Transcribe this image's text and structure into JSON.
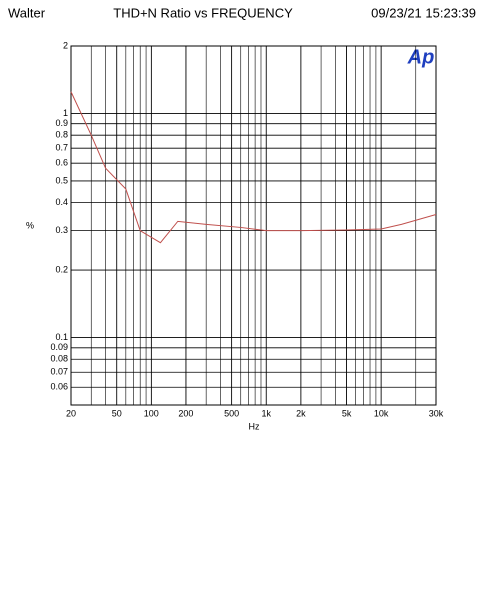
{
  "chart_data": {
    "type": "line",
    "header_left": "Walter",
    "title": "THD+N Ratio vs FREQUENCY",
    "timestamp": "09/23/21 15:23:39",
    "logo": "Ap",
    "xlabel": "Hz",
    "ylabel": "%",
    "x": [
      20,
      30,
      40,
      60,
      80,
      120,
      170,
      300,
      600,
      1000,
      2000,
      5000,
      10000,
      15000,
      30000
    ],
    "series": [
      {
        "name": "THD+N",
        "color": "#c0504d",
        "values": [
          1.25,
          0.8,
          0.57,
          0.46,
          0.3,
          0.265,
          0.33,
          0.32,
          0.31,
          0.3,
          0.3,
          0.302,
          0.305,
          0.32,
          0.354
        ]
      }
    ],
    "xscale": "log",
    "yscale": "log",
    "grid": true,
    "xlim": [
      20,
      30000
    ],
    "ylim": [
      0.05,
      2
    ],
    "xticks": [
      20,
      50,
      100,
      200,
      500,
      {
        "value": 1000,
        "label": "1k"
      },
      {
        "value": 2000,
        "label": "2k"
      },
      {
        "value": 5000,
        "label": "5k"
      },
      {
        "value": 10000,
        "label": "10k"
      },
      {
        "value": 30000,
        "label": "30k"
      }
    ],
    "yticks": [
      2,
      1,
      0.9,
      0.8,
      0.7,
      0.6,
      0.5,
      0.4,
      0.3,
      0.2,
      0.1,
      0.09,
      0.08,
      0.07,
      0.06
    ]
  }
}
